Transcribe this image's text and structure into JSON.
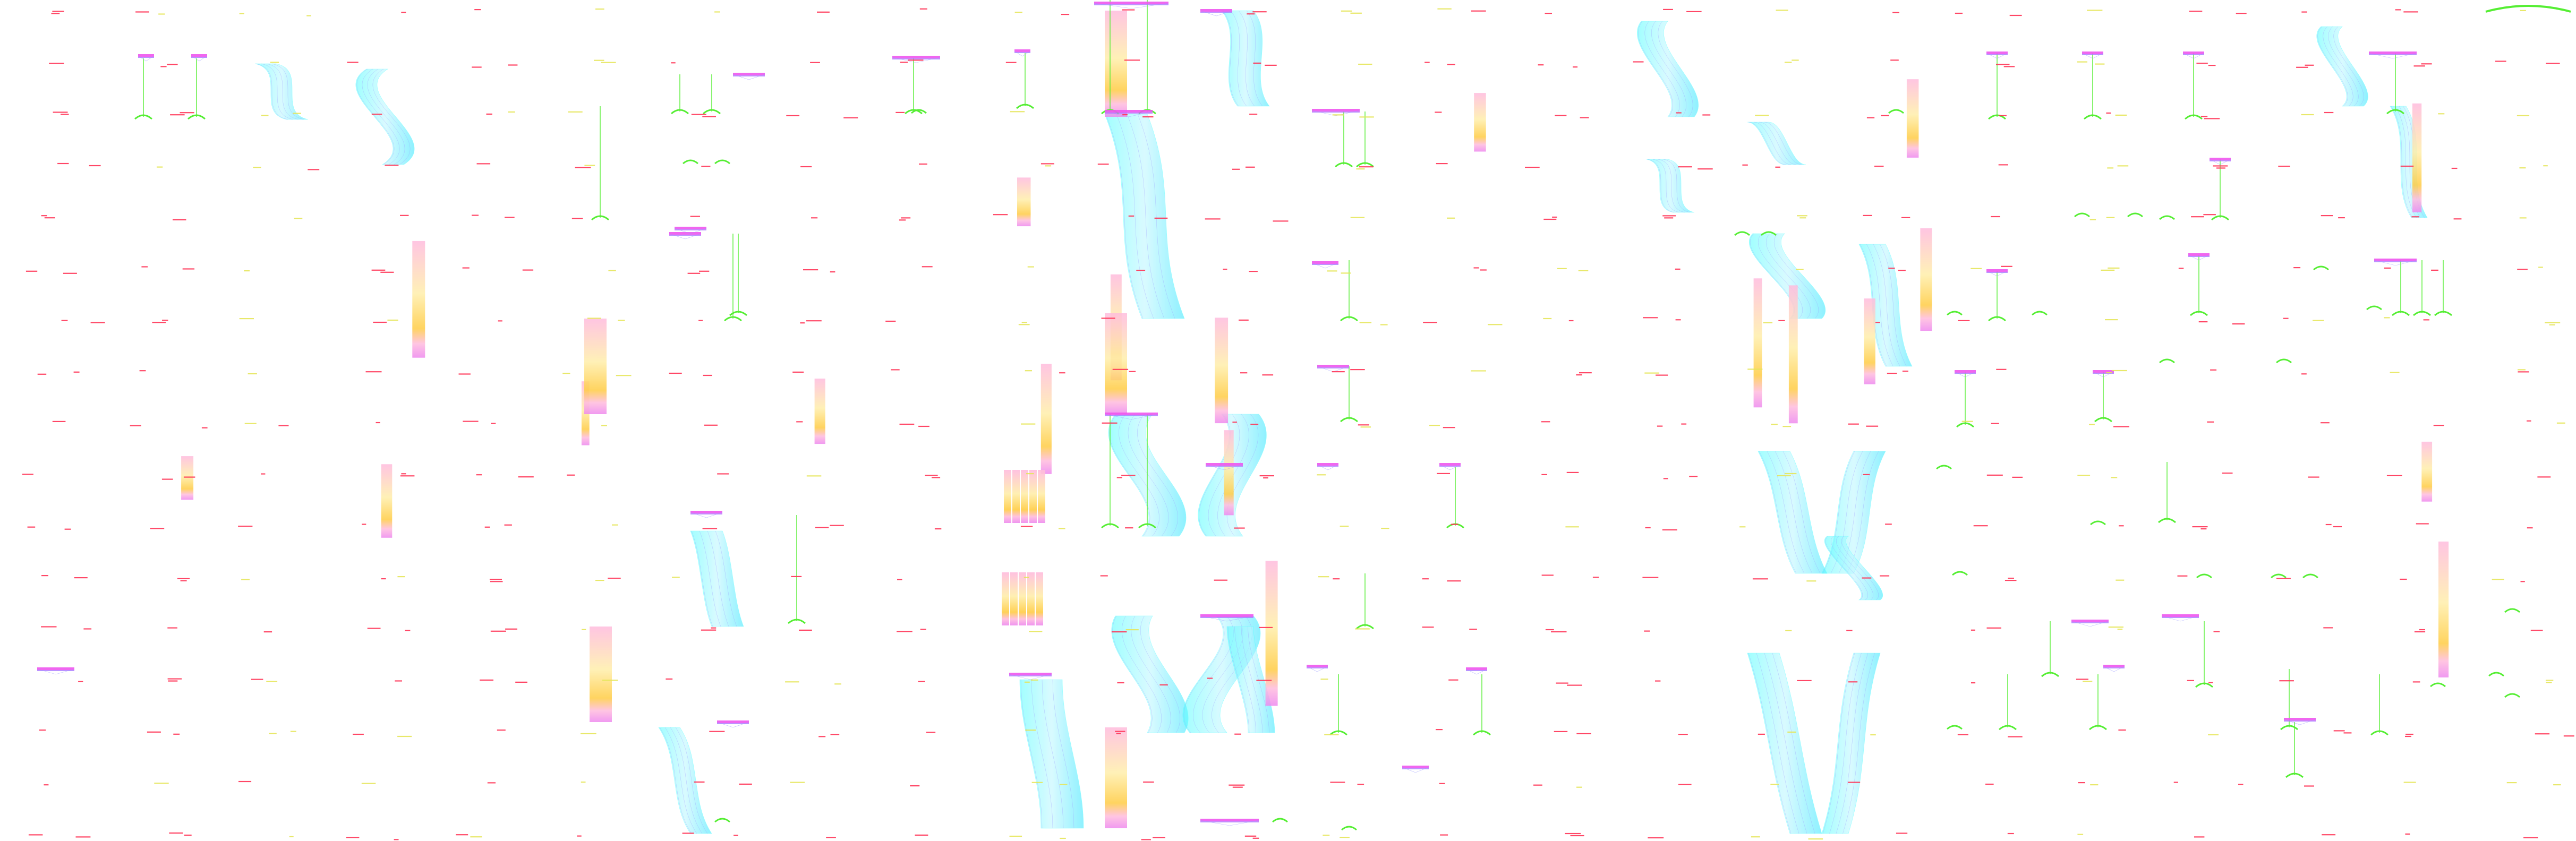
{
  "palette": {
    "background": "#ffffff",
    "label_red": "#ff3355",
    "label_yellow": "#e6e65a",
    "bus_magenta": "#ee55ee",
    "bus_violet": "#aa77ff",
    "wire_green": "#55ee33",
    "band_cyan": "#33ffff",
    "band_cyan_light": "#bbf7ff",
    "gradient_pink": "#ffbbdd",
    "gradient_cream": "#ffeeaa",
    "gradient_orange": "#ffcc44",
    "node_blue": "#9999ff"
  },
  "diagram": {
    "style": "vertical routing / cable-map visualization",
    "columns": 24,
    "rows": 16
  }
}
